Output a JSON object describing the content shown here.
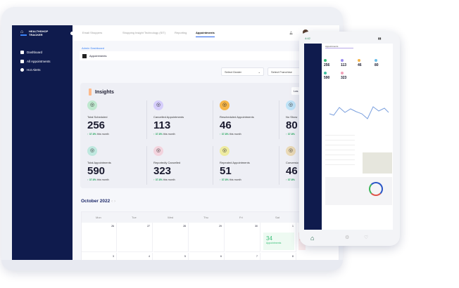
{
  "app": {
    "brand": "HEALTHSHOP TRACKER"
  },
  "sidebar": {
    "items": [
      {
        "label": "Dashboard",
        "icon": "grid-icon"
      },
      {
        "label": "All Appointments",
        "icon": "calendar-icon"
      },
      {
        "label": "Hot Alerts",
        "icon": "alert-icon"
      }
    ]
  },
  "topnav": {
    "tabs": [
      "Email Shoppers",
      "Shopping Insight Technology (SIT)",
      "Reporting",
      "Appointments"
    ],
    "active": "Appointments",
    "user": "Adam Smith"
  },
  "breadcrumb": "Admin Dashboard",
  "page_title": "Appointments",
  "filters": {
    "dealer": "Select Dealer",
    "franchise": "Select Franchise"
  },
  "insights": {
    "title": "Insights",
    "range_button": "Las",
    "cards": [
      {
        "label": "Total Scheduled",
        "value": "256",
        "delta": "37.8%",
        "delta_text": "this month",
        "color": "#bfe8cf"
      },
      {
        "label": "Cancelled Appointments",
        "value": "113",
        "delta": "37.8%",
        "delta_text": "this month",
        "color": "#d5cdfb"
      },
      {
        "label": "Rescheduled  Appointments",
        "value": "46",
        "delta": "37.8%",
        "delta_text": "this month",
        "color": "#f6b547"
      },
      {
        "label": "No Show",
        "value": "80",
        "delta": "37.8%",
        "delta_text": "",
        "color": "#bfe3f7"
      },
      {
        "label": "Total Appointments",
        "value": "590",
        "delta": "37.8%",
        "delta_text": "this month",
        "color": "#bfe8df"
      },
      {
        "label": "Reportedly Cancelled",
        "value": "323",
        "delta": "37.8%",
        "delta_text": "this month",
        "color": "#f3d3dd"
      },
      {
        "label": "Repeated Appointments",
        "value": "51",
        "delta": "37.8%",
        "delta_text": "this month",
        "color": "#eeeba0"
      },
      {
        "label": "Conversio",
        "value": "46",
        "delta": "37.8%",
        "delta_text": "",
        "color": "#ead9b5"
      }
    ]
  },
  "calendar": {
    "month": "October 2022",
    "days": [
      "Mon",
      "Tue",
      "Wed",
      "Thu",
      "Fri",
      "Sat"
    ],
    "week1": [
      "26",
      "27",
      "28",
      "29",
      "30",
      "1"
    ],
    "week2": [
      "3",
      "4",
      "5",
      "6",
      "7",
      "8"
    ],
    "event": {
      "count": "34",
      "label": "Appointments"
    },
    "overflow": "1"
  },
  "phone": {
    "time": "4:42",
    "header": "Appointments",
    "values": [
      "256",
      "113",
      "46",
      "80",
      "590",
      "323"
    ]
  },
  "colors": {
    "sidebar": "#0f1b4d",
    "accent": "#2563eb",
    "positive": "#22a55a"
  }
}
